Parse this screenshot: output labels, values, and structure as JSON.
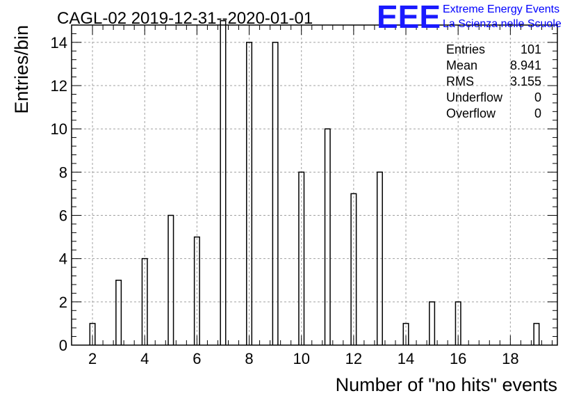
{
  "chart_data": {
    "type": "bar",
    "title": "CAGL-02 2019-12-31--2020-01-01",
    "xlabel": "Number of \"no hits\" events",
    "ylabel": "Entries/bin",
    "xlim": [
      1.2,
      19.8
    ],
    "ylim": [
      0,
      14.8
    ],
    "grid": true,
    "bar_width": 0.2,
    "x_ticks": [
      2,
      4,
      6,
      8,
      10,
      12,
      14,
      16,
      18
    ],
    "y_ticks": [
      0,
      2,
      4,
      6,
      8,
      10,
      12,
      14
    ],
    "x": [
      2,
      3,
      4,
      5,
      6,
      7,
      8,
      9,
      10,
      11,
      12,
      13,
      14,
      15,
      16,
      19
    ],
    "values": [
      1,
      3,
      4,
      6,
      5,
      15,
      14,
      14,
      8,
      10,
      7,
      8,
      1,
      2,
      2,
      1
    ],
    "stats": [
      {
        "label": "Entries",
        "value": "101"
      },
      {
        "label": "Mean",
        "value": "8.941"
      },
      {
        "label": "RMS",
        "value": "3.155"
      },
      {
        "label": "Underflow",
        "value": "0"
      },
      {
        "label": "Overflow",
        "value": "0"
      }
    ]
  },
  "logo": {
    "mark": "EEE",
    "line1": "Extreme Energy Events",
    "line2": "La Scienza nelle Scuole",
    "color": "#0000ff"
  }
}
